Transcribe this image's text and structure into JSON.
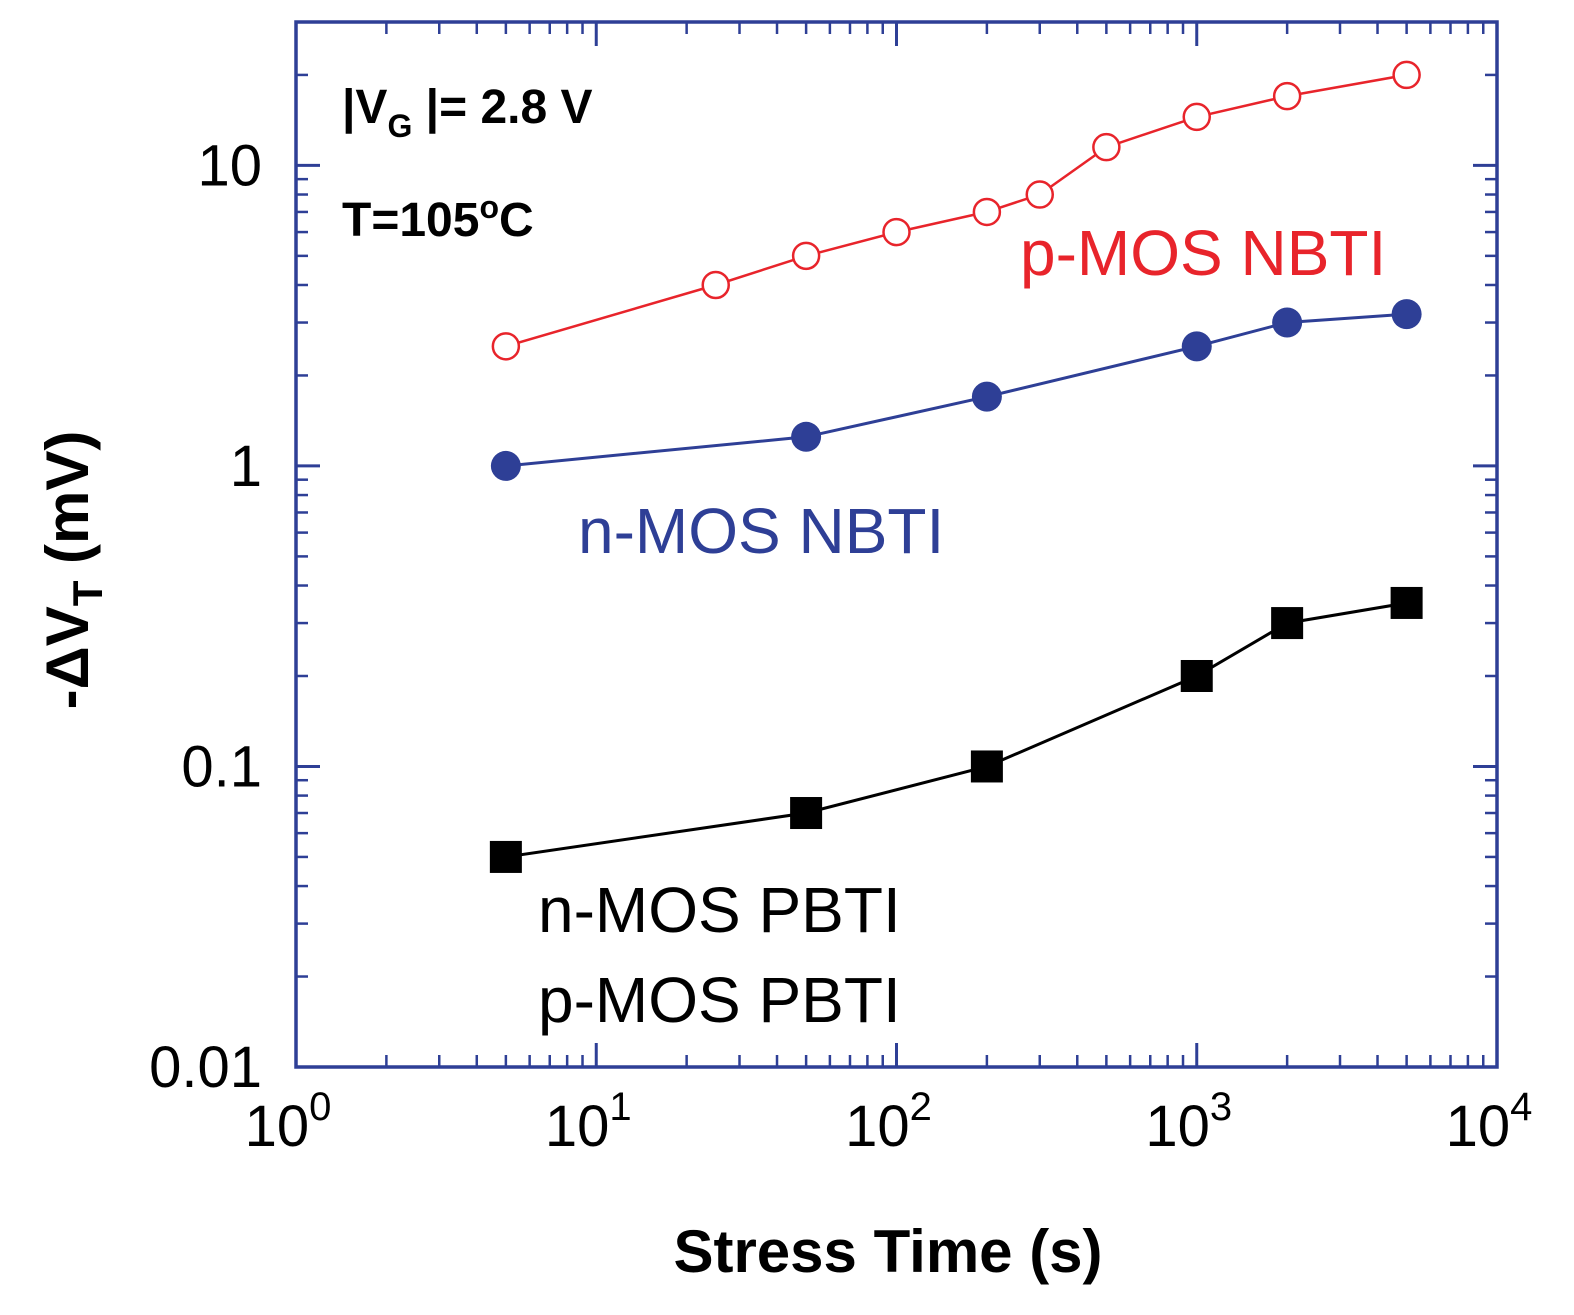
{
  "chart_data": {
    "type": "line",
    "xscale": "log",
    "yscale": "log",
    "xlim": [
      1,
      10000
    ],
    "ylim": [
      0.01,
      30
    ],
    "xlabel": "Stress Time (s)",
    "ylabel": {
      "prefix": "-ΔV",
      "sub": "T",
      "suffix": " (mV)"
    },
    "x_ticks": [
      {
        "base": "10",
        "exp": "0",
        "value": 1
      },
      {
        "base": "10",
        "exp": "1",
        "value": 10
      },
      {
        "base": "10",
        "exp": "2",
        "value": 100
      },
      {
        "base": "10",
        "exp": "3",
        "value": 1000
      },
      {
        "base": "10",
        "exp": "4",
        "value": 10000
      }
    ],
    "y_ticks": [
      {
        "label": "0.01",
        "value": 0.01
      },
      {
        "label": "0.1",
        "value": 0.1
      },
      {
        "label": "1",
        "value": 1
      },
      {
        "label": "10",
        "value": 10
      }
    ],
    "annotations": {
      "vg": {
        "a": "|V",
        "sub": "G",
        "b": " |= 2.8 V"
      },
      "temp": {
        "a": "T=105",
        "sup": "o",
        "b": "C"
      }
    },
    "series": [
      {
        "name": "p-MOS NBTI",
        "color": "#e8242b",
        "marker": "open-circle",
        "points": [
          [
            5,
            2.5
          ],
          [
            25,
            4.0
          ],
          [
            50,
            5.0
          ],
          [
            100,
            6.0
          ],
          [
            200,
            7.0
          ],
          [
            300,
            8.0
          ],
          [
            500,
            11.5
          ],
          [
            1000,
            14.5
          ],
          [
            2000,
            17.0
          ],
          [
            5000,
            20.0
          ]
        ]
      },
      {
        "name": "n-MOS NBTI",
        "color": "#2e3f96",
        "marker": "filled-circle",
        "points": [
          [
            5,
            1.0
          ],
          [
            50,
            1.25
          ],
          [
            200,
            1.7
          ],
          [
            1000,
            2.5
          ],
          [
            2000,
            3.0
          ],
          [
            5000,
            3.2
          ]
        ]
      },
      {
        "name": "n-MOS PBTI",
        "name2": "p-MOS PBTI",
        "color": "#000000",
        "marker": "filled-square",
        "points": [
          [
            5,
            0.05
          ],
          [
            50,
            0.07
          ],
          [
            200,
            0.1
          ],
          [
            1000,
            0.2
          ],
          [
            2000,
            0.3
          ],
          [
            5000,
            0.35
          ]
        ]
      }
    ]
  }
}
